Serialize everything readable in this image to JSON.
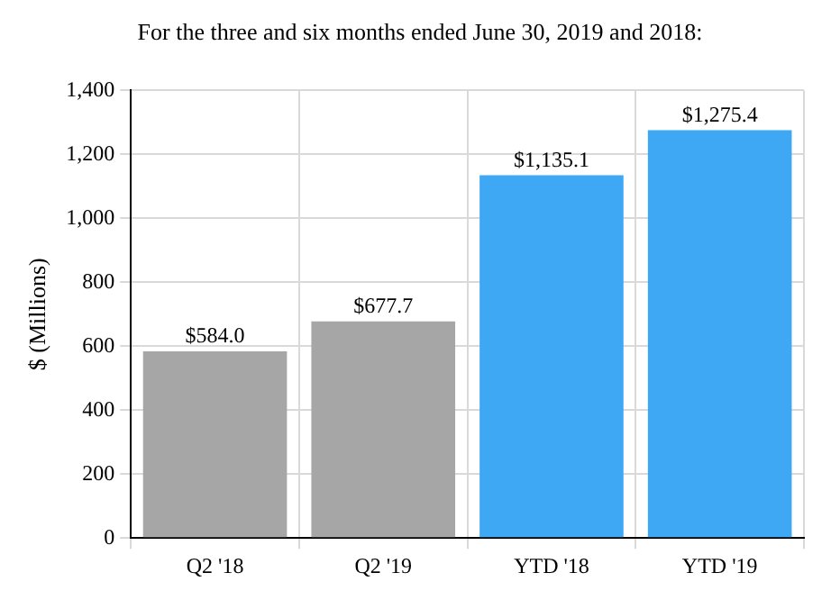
{
  "chart_data": {
    "type": "bar",
    "title": "For the three and six months ended June 30, 2019 and 2018:",
    "ylabel": "$ (Millions)",
    "categories": [
      "Q2 '18",
      "Q2 '19",
      "YTD '18",
      "YTD '19"
    ],
    "values": [
      584.0,
      677.7,
      1135.1,
      1275.4
    ],
    "colors": [
      "#a6a6a6",
      "#a6a6a6",
      "#3ea8f5",
      "#3ea8f5"
    ],
    "value_labels": [
      "$584.0",
      "$677.7",
      "$1,135.1",
      "$1,275.4"
    ],
    "ylim": [
      0,
      1400
    ],
    "yticks": [
      0,
      200,
      400,
      600,
      800,
      {
        "value": 1000,
        "label": "1,000"
      },
      {
        "value": 1200,
        "label": "1,200"
      },
      {
        "value": 1400,
        "label": "1,400"
      }
    ],
    "grid": true
  }
}
